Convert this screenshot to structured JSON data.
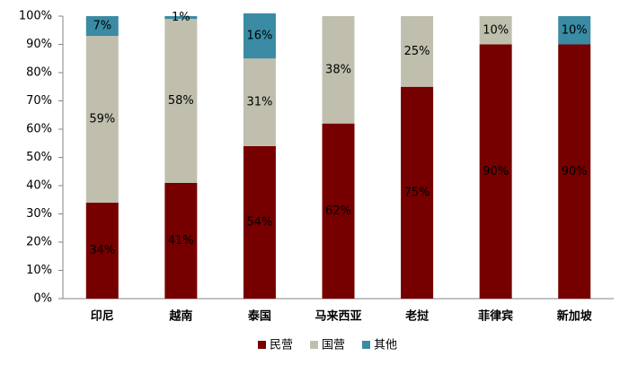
{
  "chart_data": {
    "type": "stacked_bar",
    "categories": [
      "印尼",
      "越南",
      "泰国",
      "马来西亚",
      "老挝",
      "菲律宾",
      "新加坡"
    ],
    "series": [
      {
        "name": "民营",
        "color": "#760000",
        "values": [
          34,
          41,
          54,
          62,
          75,
          90,
          90
        ],
        "value_labels": [
          "34%",
          "41%",
          "54%",
          "62%",
          "75%",
          "90%",
          "90%"
        ]
      },
      {
        "name": "国营",
        "color": "#c0bfae",
        "values": [
          59,
          58,
          31,
          38,
          25,
          10,
          null
        ],
        "value_labels": [
          "59%",
          "58%",
          "31%",
          "38%",
          "25%",
          "10%",
          null
        ]
      },
      {
        "name": "其他",
        "color": "#3a8ba3",
        "values": [
          7,
          1,
          16,
          null,
          null,
          null,
          10
        ],
        "value_labels": [
          "7%",
          "1%",
          "16%",
          null,
          null,
          null,
          "10%"
        ]
      }
    ],
    "ylim": [
      0,
      100
    ],
    "yticks": [
      {
        "value": 0,
        "label": "0%"
      },
      {
        "value": 10,
        "label": "10%"
      },
      {
        "value": 20,
        "label": "20%"
      },
      {
        "value": 30,
        "label": "30%"
      },
      {
        "value": 40,
        "label": "40%"
      },
      {
        "value": 50,
        "label": "50%"
      },
      {
        "value": 60,
        "label": "60%"
      },
      {
        "value": 70,
        "label": "70%"
      },
      {
        "value": 80,
        "label": "80%"
      },
      {
        "value": 90,
        "label": "90%"
      },
      {
        "value": 100,
        "label": "100%"
      }
    ],
    "legend": "bottom"
  }
}
